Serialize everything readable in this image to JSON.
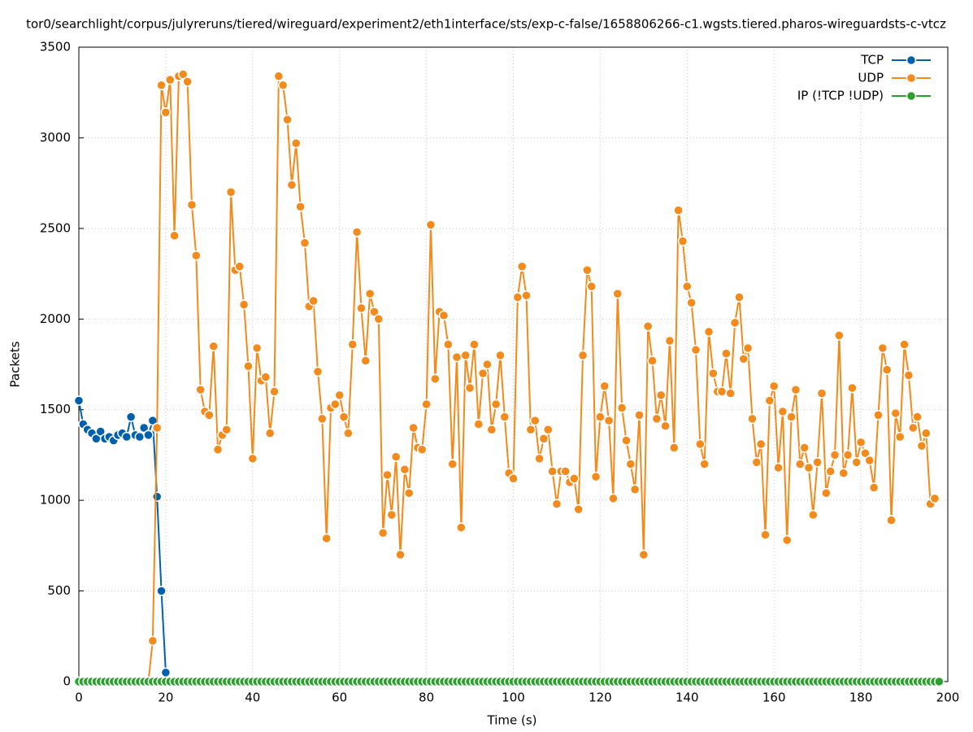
{
  "chart_data": {
    "type": "line",
    "title": "tor0/searchlight/corpus/julyreruns/tiered/wireguard/experiment2/eth1interface/sts/exp-c-false/1658806266-c1.wgsts.tiered.pharos-wireguardsts-c-vtcz",
    "x_label": "Time (s)",
    "y_label": "Packets",
    "xlim": [
      0,
      200
    ],
    "ylim": [
      0,
      3500
    ],
    "xticks": [
      0,
      20,
      40,
      60,
      80,
      100,
      120,
      140,
      160,
      180,
      200
    ],
    "yticks": [
      0,
      500,
      1000,
      1500,
      2000,
      2500,
      3000,
      3500
    ],
    "grid": true,
    "legend": "top-right",
    "x": [
      0,
      1,
      2,
      3,
      4,
      5,
      6,
      7,
      8,
      9,
      10,
      11,
      12,
      13,
      14,
      15,
      16,
      17,
      18,
      19,
      20,
      21,
      22,
      23,
      24,
      25,
      26,
      27,
      28,
      29,
      30,
      31,
      32,
      33,
      34,
      35,
      36,
      37,
      38,
      39,
      40,
      41,
      42,
      43,
      44,
      45,
      46,
      47,
      48,
      49,
      50,
      51,
      52,
      53,
      54,
      55,
      56,
      57,
      58,
      59,
      60,
      61,
      62,
      63,
      64,
      65,
      66,
      67,
      68,
      69,
      70,
      71,
      72,
      73,
      74,
      75,
      76,
      77,
      78,
      79,
      80,
      81,
      82,
      83,
      84,
      85,
      86,
      87,
      88,
      89,
      90,
      91,
      92,
      93,
      94,
      95,
      96,
      97,
      98,
      99,
      100,
      101,
      102,
      103,
      104,
      105,
      106,
      107,
      108,
      109,
      110,
      111,
      112,
      113,
      114,
      115,
      116,
      117,
      118,
      119,
      120,
      121,
      122,
      123,
      124,
      125,
      126,
      127,
      128,
      129,
      130,
      131,
      132,
      133,
      134,
      135,
      136,
      137,
      138,
      139,
      140,
      141,
      142,
      143,
      144,
      145,
      146,
      147,
      148,
      149,
      150,
      151,
      152,
      153,
      154,
      155,
      156,
      157,
      158,
      159,
      160,
      161,
      162,
      163,
      164,
      165,
      166,
      167,
      168,
      169,
      170,
      171,
      172,
      173,
      174,
      175,
      176,
      177,
      178,
      179,
      180,
      181,
      182,
      183,
      184,
      185,
      186,
      187,
      188,
      189,
      190,
      191,
      192,
      193,
      194,
      195,
      196,
      197,
      198
    ],
    "series": [
      {
        "name": "TCP",
        "color": "#0060ad",
        "values": [
          1550,
          1420,
          1390,
          1370,
          1340,
          1380,
          1340,
          1350,
          1330,
          1360,
          1370,
          1350,
          1460,
          1360,
          1350,
          1400,
          1360,
          1440,
          1020,
          500,
          50,
          0,
          0,
          0,
          0,
          0,
          0,
          0,
          0,
          0,
          0,
          0,
          0,
          0,
          0,
          0,
          0,
          0,
          0,
          0,
          0,
          0,
          0,
          0,
          0,
          0,
          0,
          0,
          0,
          0,
          0,
          0,
          0,
          0,
          0,
          0,
          0,
          0,
          0,
          0,
          0,
          0,
          0,
          0,
          0,
          0,
          0,
          0,
          0,
          0,
          0,
          0,
          0,
          0,
          0,
          0,
          0,
          0,
          0,
          0,
          0,
          0,
          0,
          0,
          0,
          0,
          0,
          0,
          0,
          0,
          0,
          0,
          0,
          0,
          0,
          0,
          0,
          0,
          0,
          0,
          0,
          0,
          0,
          0,
          0,
          0,
          0,
          0,
          0,
          0,
          0,
          0,
          0,
          0,
          0,
          0,
          0,
          0,
          0,
          0,
          0,
          0,
          0,
          0,
          0,
          0,
          0,
          0,
          0,
          0,
          0,
          0,
          0,
          0,
          0,
          0,
          0,
          0,
          0,
          0,
          0,
          0,
          0,
          0,
          0,
          0,
          0,
          0,
          0,
          0,
          0,
          0,
          0,
          0,
          0,
          0,
          0,
          0,
          0,
          0,
          0,
          0,
          0,
          0,
          0,
          0,
          0,
          0,
          0,
          0,
          0,
          0,
          0,
          0,
          0,
          0,
          0,
          0,
          0,
          0,
          0,
          0,
          0,
          0,
          0,
          0,
          0,
          0,
          0,
          0,
          0,
          0,
          0,
          0,
          0,
          0,
          0,
          0,
          0
        ]
      },
      {
        "name": "UDP",
        "color": "#f28a1c",
        "values": [
          0,
          0,
          0,
          0,
          0,
          0,
          0,
          0,
          0,
          0,
          0,
          0,
          0,
          0,
          0,
          0,
          0,
          225,
          1400,
          3290,
          3140,
          3320,
          2460,
          3340,
          3350,
          3310,
          2630,
          2350,
          1610,
          1490,
          1470,
          1850,
          1280,
          1360,
          1390,
          2700,
          2270,
          2290,
          2080,
          1740,
          1230,
          1840,
          1660,
          1680,
          1370,
          1600,
          3340,
          3290,
          3100,
          2740,
          2970,
          2620,
          2420,
          2070,
          2100,
          1710,
          1450,
          790,
          1510,
          1530,
          1580,
          1460,
          1370,
          1860,
          2480,
          2060,
          1770,
          2140,
          2040,
          2000,
          820,
          1140,
          920,
          1240,
          700,
          1170,
          1040,
          1400,
          1290,
          1280,
          1530,
          2520,
          1670,
          2040,
          2020,
          1860,
          1200,
          1790,
          850,
          1800,
          1620,
          1860,
          1420,
          1700,
          1750,
          1390,
          1530,
          1800,
          1460,
          1150,
          1120,
          2120,
          2290,
          2130,
          1390,
          1440,
          1230,
          1340,
          1390,
          1160,
          980,
          1160,
          1160,
          1100,
          1120,
          950,
          1800,
          2270,
          2180,
          1130,
          1460,
          1630,
          1440,
          1010,
          2140,
          1510,
          1330,
          1200,
          1060,
          1470,
          700,
          1960,
          1770,
          1450,
          1580,
          1410,
          1880,
          1290,
          2600,
          2430,
          2180,
          2090,
          1830,
          1310,
          1200,
          1930,
          1700,
          1600,
          1600,
          1810,
          1590,
          1980,
          2120,
          1780,
          1840,
          1450,
          1210,
          1310,
          810,
          1550,
          1630,
          1180,
          1490,
          780,
          1460,
          1610,
          1200,
          1290,
          1180,
          920,
          1210,
          1590,
          1040,
          1160,
          1250,
          1910,
          1150,
          1250,
          1620,
          1210,
          1320,
          1260,
          1220,
          1070,
          1470,
          1840,
          1720,
          890,
          1480,
          1350,
          1860,
          1690,
          1400,
          1460,
          1300,
          1370,
          980,
          1010,
          null
        ]
      },
      {
        "name": "IP (!TCP  !UDP)",
        "color": "#2ca02c",
        "values": [
          0,
          0,
          0,
          0,
          0,
          0,
          0,
          0,
          0,
          0,
          0,
          0,
          0,
          0,
          0,
          0,
          0,
          0,
          0,
          0,
          0,
          0,
          0,
          0,
          0,
          0,
          0,
          0,
          0,
          0,
          0,
          0,
          0,
          0,
          0,
          0,
          0,
          0,
          0,
          0,
          0,
          0,
          0,
          0,
          0,
          0,
          0,
          0,
          0,
          0,
          0,
          0,
          0,
          0,
          0,
          0,
          0,
          0,
          0,
          0,
          0,
          0,
          0,
          0,
          0,
          0,
          0,
          0,
          0,
          0,
          0,
          0,
          0,
          0,
          0,
          0,
          0,
          0,
          0,
          0,
          0,
          0,
          0,
          0,
          0,
          0,
          0,
          0,
          0,
          0,
          0,
          0,
          0,
          0,
          0,
          0,
          0,
          0,
          0,
          0,
          0,
          0,
          0,
          0,
          0,
          0,
          0,
          0,
          0,
          0,
          0,
          0,
          0,
          0,
          0,
          0,
          0,
          0,
          0,
          0,
          0,
          0,
          0,
          0,
          0,
          0,
          0,
          0,
          0,
          0,
          0,
          0,
          0,
          0,
          0,
          0,
          0,
          0,
          0,
          0,
          0,
          0,
          0,
          0,
          0,
          0,
          0,
          0,
          0,
          0,
          0,
          0,
          0,
          0,
          0,
          0,
          0,
          0,
          0,
          0,
          0,
          0,
          0,
          0,
          0,
          0,
          0,
          0,
          0,
          0,
          0,
          0,
          0,
          0,
          0,
          0,
          0,
          0,
          0,
          0,
          0,
          0,
          0,
          0,
          0,
          0,
          0,
          0,
          0,
          0,
          0,
          0,
          0,
          0,
          0,
          0,
          0,
          0,
          0
        ]
      }
    ]
  }
}
